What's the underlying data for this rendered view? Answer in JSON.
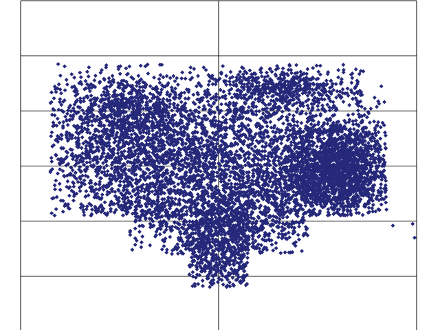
{
  "chart_data": {
    "type": "scatter",
    "title": "",
    "xlabel": "",
    "ylabel": "",
    "xlim": [
      -1,
      1
    ],
    "ylim": [
      -3,
      3
    ],
    "grid": true,
    "x_gridlines": [
      0
    ],
    "y_gridlines": [
      -2,
      -1,
      0,
      1,
      2
    ],
    "legend": "none",
    "marker": "diamond",
    "marker_color": "#26297a",
    "series": [
      {
        "clusters": [
          {
            "cx": -0.55,
            "cy": 0.4,
            "sx": 0.22,
            "sy": 0.7,
            "n": 1000
          },
          {
            "cx": -0.4,
            "cy": 1.0,
            "sx": 0.18,
            "sy": 0.35,
            "n": 600
          },
          {
            "cx": -0.15,
            "cy": 0.0,
            "sx": 0.25,
            "sy": 0.45,
            "n": 900
          },
          {
            "cx": 0.15,
            "cy": 0.6,
            "sx": 0.25,
            "sy": 0.55,
            "n": 800
          },
          {
            "cx": 0.35,
            "cy": 1.4,
            "sx": 0.18,
            "sy": 0.2,
            "n": 500
          },
          {
            "cx": 0.6,
            "cy": 0.0,
            "sx": 0.14,
            "sy": 0.45,
            "n": 1800
          },
          {
            "cx": 0.45,
            "cy": -0.4,
            "sx": 0.2,
            "sy": 0.3,
            "n": 500
          },
          {
            "cx": 0.0,
            "cy": -1.5,
            "sx": 0.12,
            "sy": 0.45,
            "n": 700
          },
          {
            "cx": 0.15,
            "cy": -1.0,
            "sx": 0.2,
            "sy": 0.35,
            "n": 500
          },
          {
            "cx": -0.3,
            "cy": -0.8,
            "sx": 0.25,
            "sy": 0.3,
            "n": 400
          }
        ],
        "outliers": [
          [
            0.98,
            -1.05
          ],
          [
            0.99,
            -1.3
          ],
          [
            0.88,
            -1.08
          ]
        ]
      }
    ]
  }
}
